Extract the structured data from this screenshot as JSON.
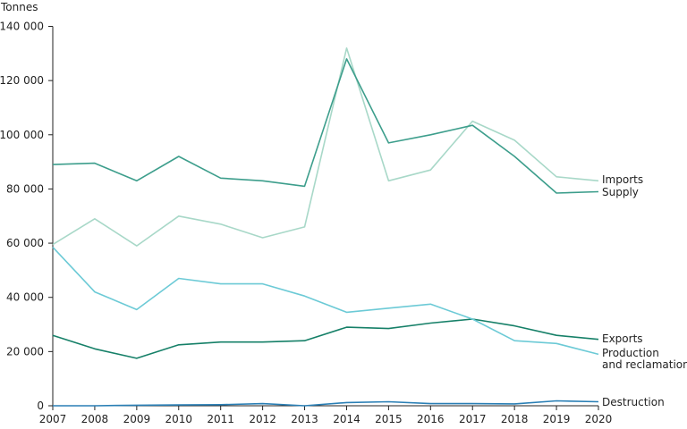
{
  "chart_data": {
    "type": "line",
    "ylabel": "Tonnes",
    "xlabel": "",
    "ylim": [
      0,
      140000
    ],
    "y_ticks": [
      "0",
      "20 000",
      "40 000",
      "60 000",
      "80 000",
      "100 000",
      "120 000",
      "140 000"
    ],
    "y_tick_values": [
      0,
      20000,
      40000,
      60000,
      80000,
      100000,
      120000,
      140000
    ],
    "x": [
      "2007",
      "2008",
      "2009",
      "2010",
      "2011",
      "2012",
      "2013",
      "2014",
      "2015",
      "2016",
      "2017",
      "2018",
      "2019",
      "2020"
    ],
    "grid": false,
    "legend": "inline-right",
    "series": [
      {
        "name": "Imports",
        "label_lines": [
          "Imports"
        ],
        "color": "#a8d8c8",
        "values": [
          59500,
          69000,
          59000,
          70000,
          67000,
          62000,
          66000,
          132000,
          83000,
          87000,
          105000,
          98000,
          84500,
          83000
        ]
      },
      {
        "name": "Supply",
        "label_lines": [
          "Supply"
        ],
        "color": "#3d9e8c",
        "values": [
          89000,
          89500,
          83000,
          92000,
          84000,
          83000,
          81000,
          128000,
          97000,
          100000,
          103500,
          92000,
          78500,
          79000
        ]
      },
      {
        "name": "Exports",
        "label_lines": [
          "Exports"
        ],
        "color": "#168068",
        "values": [
          26000,
          21000,
          17500,
          22500,
          23500,
          23500,
          24000,
          29000,
          28500,
          30500,
          32000,
          29500,
          26000,
          24500
        ]
      },
      {
        "name": "Production and reclamation",
        "label_lines": [
          "Production",
          "and reclamation"
        ],
        "color": "#6ccad6",
        "values": [
          58500,
          42000,
          35500,
          47000,
          45000,
          45000,
          40500,
          34500,
          36000,
          37500,
          32000,
          24000,
          23000,
          19000
        ]
      },
      {
        "name": "Destruction",
        "label_lines": [
          "Destruction"
        ],
        "color": "#2a7fb5",
        "values": [
          0,
          0,
          200,
          300,
          400,
          800,
          0,
          1200,
          1500,
          800,
          800,
          700,
          1800,
          1500
        ]
      }
    ]
  }
}
